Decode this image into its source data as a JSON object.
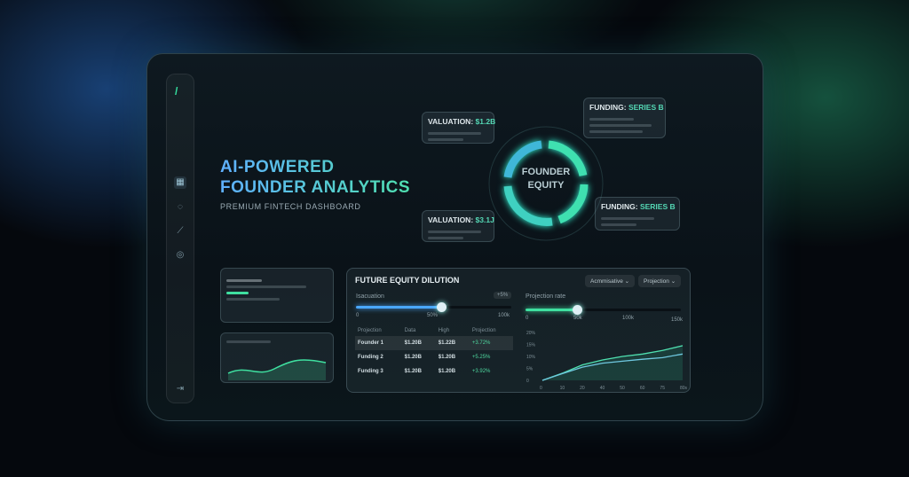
{
  "hero": {
    "title_line1": "AI-POWERED",
    "title_line2": "FOUNDER ANALYTICS",
    "subtitle": "PREMIUM FINTECH DASHBOARD"
  },
  "sidebar": {
    "icons": [
      "logo-icon",
      "grid-icon",
      "database-icon",
      "chart-icon",
      "globe-icon",
      "logout-icon"
    ]
  },
  "ring": {
    "label_line1": "FOUNDER",
    "label_line2": "EQUITY"
  },
  "callouts": [
    {
      "label": "VALUATION:",
      "value": "$1.2B"
    },
    {
      "label": "FUNDING:",
      "value": "SERIES B"
    },
    {
      "label": "VALUATION:",
      "value": "$3.1J"
    },
    {
      "label": "FUNDING:",
      "value": "SERIES B"
    }
  ],
  "panel": {
    "title": "FUTURE EQUITY DILUTION",
    "dropdown1": "Acmmisative",
    "dropdown2": "Projection",
    "slider1": {
      "label": "Isacuation",
      "badge": "+5%",
      "min": "0",
      "mid": "50%",
      "max": "100k",
      "value": 0.55,
      "color": "#4aa8ff"
    },
    "slider2": {
      "label": "Projection rate",
      "min": "0",
      "mid": "50k",
      "t3": "100k",
      "max": "150k",
      "value": 0.33,
      "color": "#3fe0a0"
    },
    "table": {
      "headers": [
        "Projection",
        "Data",
        "High",
        "Projection"
      ],
      "rows": [
        [
          "Founder 1",
          "$1.20B",
          "$1.22B",
          "+3.72%"
        ],
        [
          "Funding 2",
          "$1.20B",
          "$1.20B",
          "+5.25%"
        ],
        [
          "Funding 3",
          "$1.20B",
          "$1.20B",
          "+3.92%"
        ]
      ]
    }
  },
  "chart_data": {
    "type": "area",
    "y_ticks": [
      "20%",
      "15%",
      "10%",
      "5%",
      "0"
    ],
    "x_ticks": [
      "0",
      "10",
      "20",
      "40",
      "50",
      "60",
      "75",
      "80s"
    ],
    "ylim": [
      0,
      20
    ],
    "series": [
      {
        "values": [
          0,
          3,
          6.5,
          8.5,
          10,
          11,
          12.5,
          14.5
        ],
        "color": "#4fe0b0"
      },
      {
        "values": [
          0,
          2.8,
          5.5,
          7.2,
          8,
          8.8,
          9.5,
          11
        ],
        "color": "#6fc8e0"
      }
    ]
  }
}
